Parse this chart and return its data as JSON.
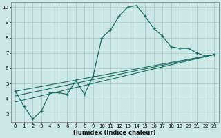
{
  "xlabel": "Humidex (Indice chaleur)",
  "xlim": [
    -0.5,
    23.5
  ],
  "ylim": [
    2.5,
    10.3
  ],
  "xticks": [
    0,
    1,
    2,
    3,
    4,
    5,
    6,
    7,
    8,
    9,
    10,
    11,
    12,
    13,
    14,
    15,
    16,
    17,
    18,
    19,
    20,
    21,
    22,
    23
  ],
  "yticks": [
    3,
    4,
    5,
    6,
    7,
    8,
    9,
    10
  ],
  "bg_color": "#cce8e6",
  "grid_color": "#aaccca",
  "line_color": "#1a6b62",
  "line1_x": [
    0,
    1,
    2,
    3,
    4,
    5,
    6,
    7,
    8,
    9,
    10,
    11,
    12,
    13,
    14,
    15,
    16,
    17,
    18,
    19,
    20,
    21,
    22,
    23
  ],
  "line1_y": [
    4.5,
    3.5,
    2.7,
    3.2,
    4.4,
    4.4,
    4.3,
    5.2,
    4.3,
    5.5,
    8.0,
    8.5,
    9.4,
    10.0,
    10.1,
    9.4,
    8.6,
    8.1,
    7.4,
    7.3,
    7.3,
    7.0,
    6.8,
    6.9
  ],
  "line2_x": [
    0,
    23
  ],
  "line2_y": [
    4.5,
    6.9
  ],
  "line3_x": [
    0,
    23
  ],
  "line3_y": [
    4.2,
    6.9
  ],
  "line4_x": [
    0,
    23
  ],
  "line4_y": [
    3.8,
    6.9
  ]
}
